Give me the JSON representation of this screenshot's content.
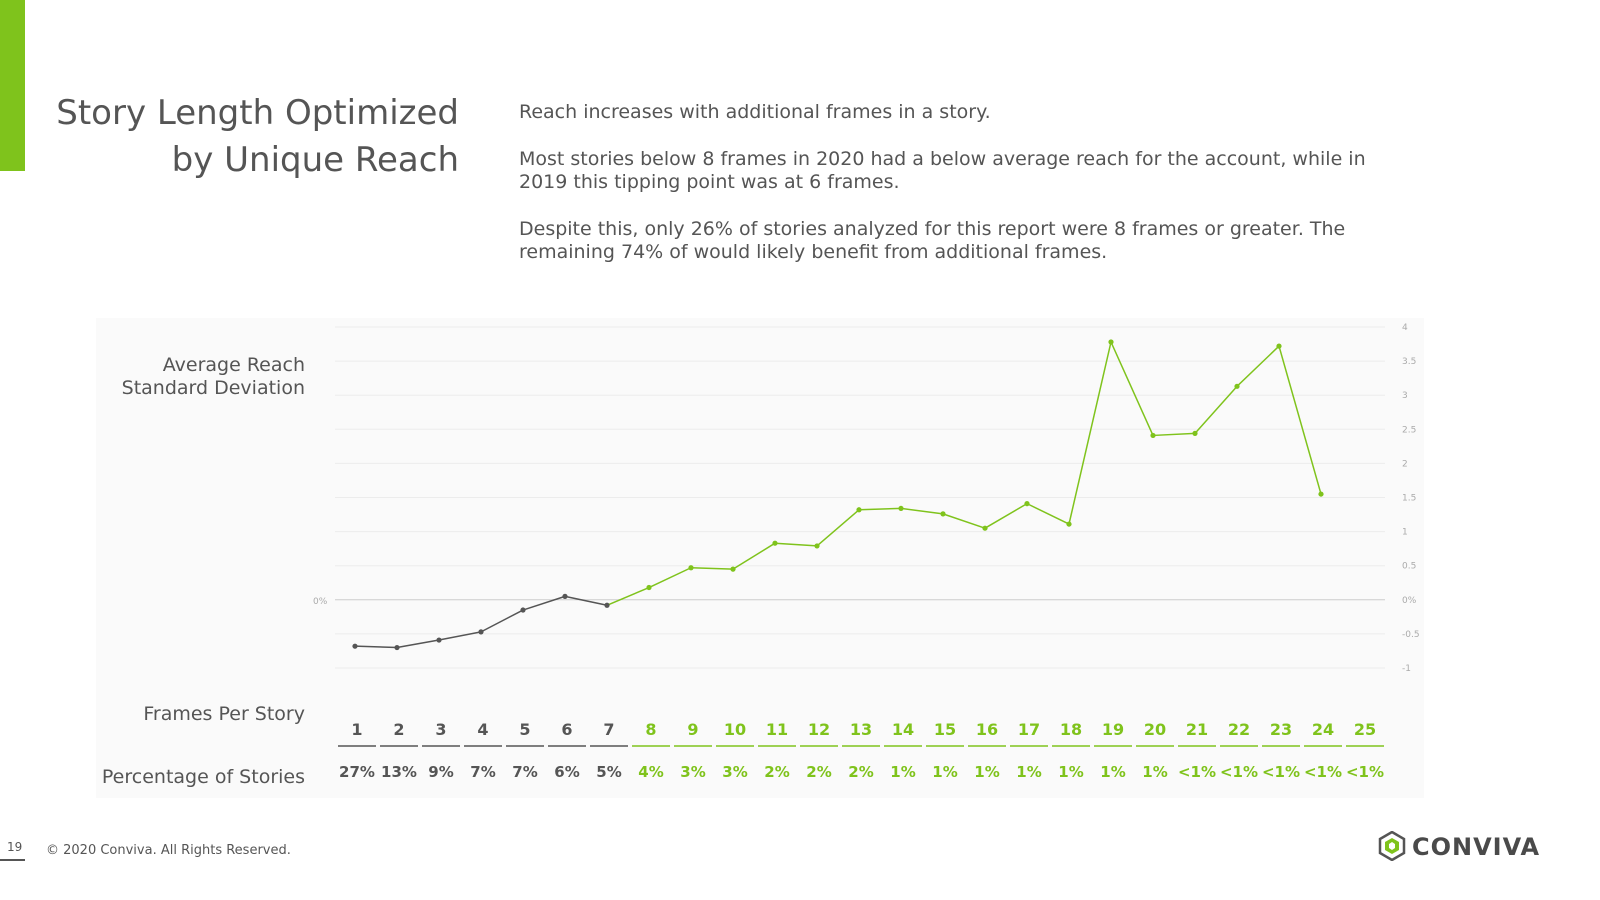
{
  "slide": {
    "title_line1": "Story Length Optimized",
    "title_line2": "by Unique Reach",
    "paragraphs": [
      "Reach increases with additional frames in a story.",
      "Most stories below 8 frames in 2020 had a below average reach for the account, while in 2019 this tipping point was at 6 frames.",
      "Despite this, only 26% of stories analyzed for this report were 8 frames or greater. The remaining 74% of would likely benefit from additional frames."
    ],
    "ylabel_line1": "Average Reach",
    "ylabel_line2": "Standard Deviation",
    "row_label_frames": "Frames Per Story",
    "row_label_pct": "Percentage of Stories",
    "footer_page": "19",
    "footer_copyright": "© 2020 Conviva. All Rights Reserved.",
    "logo_text": "CONVIVA",
    "logo_icon": "conviva-logo-icon"
  },
  "colors": {
    "accent": "#7fc31c",
    "below_threshold": "#555555",
    "above_threshold": "#7fc31c"
  },
  "chart_data": {
    "type": "line",
    "x": [
      1,
      2,
      3,
      4,
      5,
      6,
      7,
      8,
      9,
      10,
      11,
      12,
      13,
      14,
      15,
      16,
      17,
      18,
      19,
      20,
      21,
      22,
      23,
      24,
      25
    ],
    "values": [
      -0.68,
      -0.7,
      -0.59,
      -0.47,
      -0.15,
      0.05,
      -0.08,
      0.18,
      0.47,
      0.45,
      0.83,
      0.79,
      1.32,
      1.34,
      1.26,
      1.05,
      1.41,
      1.11,
      3.78,
      2.41,
      2.44,
      3.13,
      3.72,
      1.55,
      null
    ],
    "right_axis_ticks": [
      "4",
      "3.5",
      "3",
      "2.5",
      "2",
      "1.5",
      "1",
      "0.5",
      "0%",
      "-0.5",
      "-1"
    ],
    "left_zero_label": "0%",
    "ylim": [
      -1,
      4
    ],
    "grid": true,
    "threshold_frame": 8,
    "frames_labels": [
      "1",
      "2",
      "3",
      "4",
      "5",
      "6",
      "7",
      "8",
      "9",
      "10",
      "11",
      "12",
      "13",
      "14",
      "15",
      "16",
      "17",
      "18",
      "19",
      "20",
      "21",
      "22",
      "23",
      "24",
      "25"
    ],
    "percentage_labels": [
      "27%",
      "13%",
      "9%",
      "7%",
      "7%",
      "6%",
      "5%",
      "4%",
      "3%",
      "3%",
      "2%",
      "2%",
      "2%",
      "1%",
      "1%",
      "1%",
      "1%",
      "1%",
      "1%",
      "1%",
      "<1%",
      "<1%",
      "<1%",
      "<1%",
      "<1%"
    ]
  }
}
